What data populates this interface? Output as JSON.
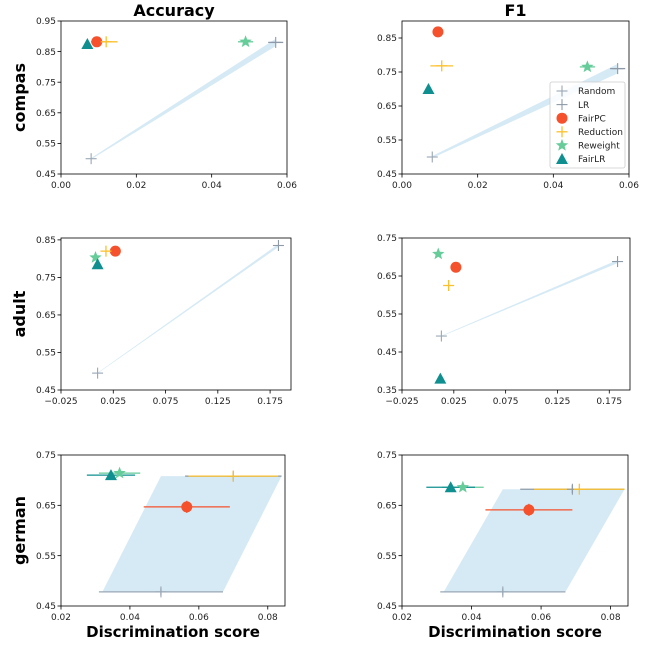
{
  "colors": {
    "Random": "#9aa7b4",
    "LR": "#8e9aa8",
    "FairPC": "#f4512c",
    "Reduction": "#fbc02d",
    "Reweight": "#66cc99",
    "FairLR": "#0f8f8f",
    "band": "#d6eaf5"
  },
  "legend": [
    "Random",
    "LR",
    "FairPC",
    "Reduction",
    "Reweight",
    "FairLR"
  ],
  "chart_data": [
    {
      "type": "scatter",
      "title": "Accuracy",
      "ylabel": "compas",
      "xlabel": "",
      "xlim": [
        0,
        0.06
      ],
      "ylim": [
        0.45,
        0.95
      ],
      "xticks": [
        0,
        0.02,
        0.04,
        0.06
      ],
      "xtick_labels": [
        "0.00",
        "0.02",
        "0.04",
        "0.06"
      ],
      "yticks": [
        0.45,
        0.55,
        0.65,
        0.75,
        0.85,
        0.95
      ],
      "ytick_labels": [
        "0.45",
        "0.55",
        "0.65",
        "0.75",
        "0.85",
        "0.95"
      ],
      "band": [
        [
          0.008,
          0.5
        ],
        [
          0.057,
          0.88
        ]
      ],
      "band_width": 0.012,
      "points": [
        {
          "series": "Random",
          "x": 0.008,
          "y": 0.5
        },
        {
          "series": "LR",
          "x": 0.057,
          "y": 0.88,
          "xerr": 0.002
        },
        {
          "series": "FairPC",
          "x": 0.0095,
          "y": 0.882,
          "xerr": 0.0015
        },
        {
          "series": "Reduction",
          "x": 0.012,
          "y": 0.882,
          "xerr": 0.003
        },
        {
          "series": "Reweight",
          "x": 0.049,
          "y": 0.882,
          "xerr": 0.002
        },
        {
          "series": "FairLR",
          "x": 0.007,
          "y": 0.875
        }
      ]
    },
    {
      "type": "scatter",
      "title": "F1",
      "ylabel": "",
      "xlabel": "",
      "xlim": [
        0,
        0.06
      ],
      "ylim": [
        0.45,
        0.9
      ],
      "xticks": [
        0,
        0.02,
        0.04,
        0.06
      ],
      "xtick_labels": [
        "0.00",
        "0.02",
        "0.04",
        "0.06"
      ],
      "yticks": [
        0.45,
        0.55,
        0.65,
        0.75,
        0.85
      ],
      "ytick_labels": [
        "0.45",
        "0.55",
        "0.65",
        "0.75",
        "0.85"
      ],
      "band": [
        [
          0.008,
          0.5
        ],
        [
          0.057,
          0.76
        ]
      ],
      "band_width": 0.014,
      "legend": true,
      "points": [
        {
          "series": "Random",
          "x": 0.008,
          "y": 0.5
        },
        {
          "series": "LR",
          "x": 0.057,
          "y": 0.76,
          "xerr": 0.002
        },
        {
          "series": "FairPC",
          "x": 0.0095,
          "y": 0.868,
          "xerr": 0.001
        },
        {
          "series": "Reduction",
          "x": 0.0105,
          "y": 0.768,
          "xerr": 0.003
        },
        {
          "series": "Reweight",
          "x": 0.049,
          "y": 0.765,
          "xerr": 0.002
        },
        {
          "series": "FairLR",
          "x": 0.007,
          "y": 0.7
        }
      ]
    },
    {
      "type": "scatter",
      "title": "",
      "ylabel": "adult",
      "xlabel": "",
      "xlim": [
        -0.025,
        0.195
      ],
      "ylim": [
        0.45,
        0.855
      ],
      "xticks": [
        -0.025,
        0.025,
        0.075,
        0.125,
        0.175
      ],
      "xtick_labels": [
        "−0.025",
        "0.025",
        "0.075",
        "0.125",
        "0.175"
      ],
      "yticks": [
        0.45,
        0.55,
        0.65,
        0.75,
        0.85
      ],
      "ytick_labels": [
        "0.45",
        "0.55",
        "0.65",
        "0.75",
        "0.85"
      ],
      "band": [
        [
          0.01,
          0.495
        ],
        [
          0.183,
          0.835
        ]
      ],
      "band_width": 0.004,
      "points": [
        {
          "series": "Random",
          "x": 0.01,
          "y": 0.495
        },
        {
          "series": "LR",
          "x": 0.183,
          "y": 0.835
        },
        {
          "series": "FairPC",
          "x": 0.027,
          "y": 0.82
        },
        {
          "series": "Reduction",
          "x": 0.018,
          "y": 0.82
        },
        {
          "series": "Reweight",
          "x": 0.008,
          "y": 0.803
        },
        {
          "series": "FairLR",
          "x": 0.01,
          "y": 0.785
        }
      ]
    },
    {
      "type": "scatter",
      "title": "",
      "ylabel": "",
      "xlabel": "",
      "xlim": [
        -0.025,
        0.195
      ],
      "ylim": [
        0.35,
        0.75
      ],
      "xticks": [
        -0.025,
        0.025,
        0.075,
        0.125,
        0.175
      ],
      "xtick_labels": [
        "−0.025",
        "0.025",
        "0.075",
        "0.125",
        "0.175"
      ],
      "yticks": [
        0.35,
        0.45,
        0.55,
        0.65,
        0.75
      ],
      "ytick_labels": [
        "0.35",
        "0.45",
        "0.55",
        "0.65",
        "0.75"
      ],
      "band": [
        [
          0.013,
          0.492
        ],
        [
          0.183,
          0.688
        ]
      ],
      "band_width": 0.004,
      "points": [
        {
          "series": "Random",
          "x": 0.013,
          "y": 0.492
        },
        {
          "series": "LR",
          "x": 0.183,
          "y": 0.688
        },
        {
          "series": "FairPC",
          "x": 0.027,
          "y": 0.673
        },
        {
          "series": "Reduction",
          "x": 0.02,
          "y": 0.625
        },
        {
          "series": "Reweight",
          "x": 0.01,
          "y": 0.708
        },
        {
          "series": "FairLR",
          "x": 0.012,
          "y": 0.38
        }
      ]
    },
    {
      "type": "scatter",
      "title": "",
      "ylabel": "german",
      "xlabel": "Discrimination score",
      "xlim": [
        0.02,
        0.085
      ],
      "ylim": [
        0.45,
        0.75
      ],
      "xticks": [
        0.02,
        0.04,
        0.06,
        0.08
      ],
      "xtick_labels": [
        "0.02",
        "0.04",
        "0.06",
        "0.08"
      ],
      "yticks": [
        0.45,
        0.55,
        0.65,
        0.75
      ],
      "ytick_labels": [
        "0.45",
        "0.55",
        "0.65",
        "0.75"
      ],
      "quad": [
        [
          0.032,
          0.478
        ],
        [
          0.067,
          0.478
        ],
        [
          0.084,
          0.708
        ],
        [
          0.049,
          0.708
        ]
      ],
      "points": [
        {
          "series": "Random",
          "x": 0.049,
          "y": 0.478,
          "xerr": 0.018,
          "yerr": 0.007
        },
        {
          "series": "LR",
          "x": 0.07,
          "y": 0.708,
          "xerr": 0.014,
          "yerr": 0.008
        },
        {
          "series": "FairPC",
          "x": 0.0565,
          "y": 0.647,
          "xerr": 0.0125,
          "yerr": 0.012
        },
        {
          "series": "Reduction",
          "x": 0.07,
          "y": 0.708,
          "xerr": 0.013
        },
        {
          "series": "Reweight",
          "x": 0.037,
          "y": 0.714,
          "xerr": 0.006
        },
        {
          "series": "FairLR",
          "x": 0.0345,
          "y": 0.71,
          "xerr": 0.007
        }
      ]
    },
    {
      "type": "scatter",
      "title": "",
      "ylabel": "",
      "xlabel": "Discrimination score",
      "xlim": [
        0.02,
        0.085
      ],
      "ylim": [
        0.45,
        0.75
      ],
      "xticks": [
        0.02,
        0.04,
        0.06,
        0.08
      ],
      "xtick_labels": [
        "0.02",
        "0.04",
        "0.06",
        "0.08"
      ],
      "yticks": [
        0.45,
        0.55,
        0.65,
        0.75
      ],
      "ytick_labels": [
        "0.45",
        "0.55",
        "0.65",
        "0.75"
      ],
      "quad": [
        [
          0.032,
          0.478
        ],
        [
          0.067,
          0.478
        ],
        [
          0.084,
          0.682
        ],
        [
          0.049,
          0.682
        ]
      ],
      "points": [
        {
          "series": "Random",
          "x": 0.049,
          "y": 0.478,
          "xerr": 0.018,
          "yerr": 0.007
        },
        {
          "series": "LR",
          "x": 0.069,
          "y": 0.682,
          "xerr": 0.015,
          "yerr": 0.008
        },
        {
          "series": "FairPC",
          "x": 0.0565,
          "y": 0.641,
          "xerr": 0.0125,
          "yerr": 0.012
        },
        {
          "series": "Reduction",
          "x": 0.071,
          "y": 0.682,
          "xerr": 0.013
        },
        {
          "series": "Reweight",
          "x": 0.0375,
          "y": 0.686,
          "xerr": 0.006
        },
        {
          "series": "FairLR",
          "x": 0.034,
          "y": 0.686,
          "xerr": 0.007
        }
      ]
    }
  ]
}
